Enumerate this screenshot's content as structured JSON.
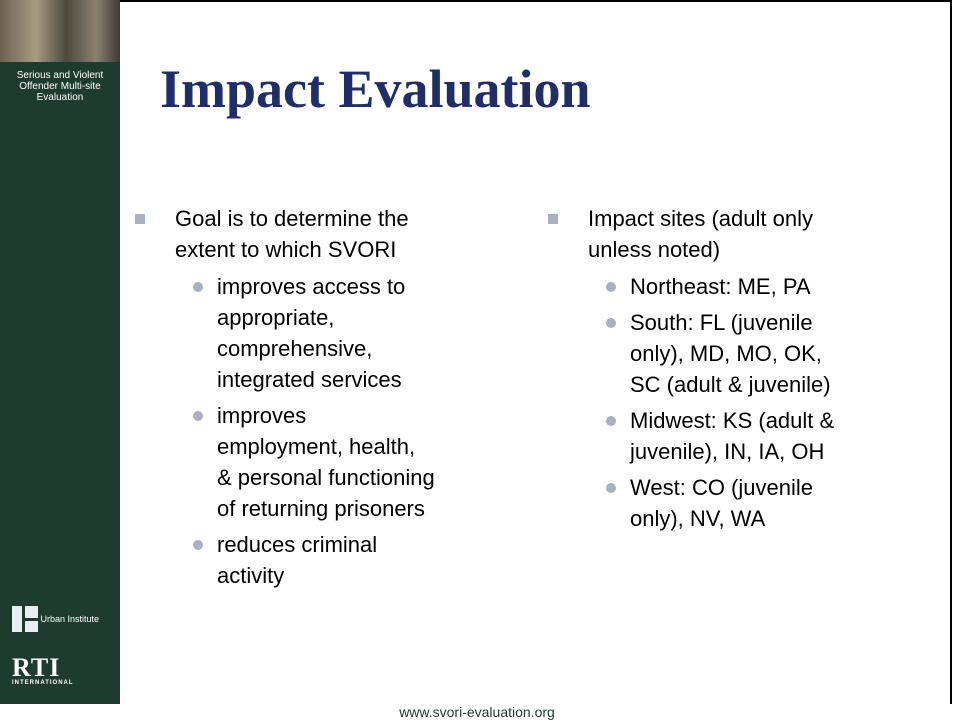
{
  "sidebar": {
    "caption": "Serious and Violent Offender Multi-site Evaluation",
    "logos": [
      {
        "label": "Urban Institute"
      },
      {
        "label": "RTI",
        "sublabel": "INTERNATIONAL"
      }
    ]
  },
  "title": "Impact Evaluation",
  "columns": [
    {
      "text": "Goal is to determine the extent to which SVORI",
      "items": [
        "improves access to appropriate, comprehensive, integrated services",
        "improves employment, health, & personal functioning of returning prisoners",
        "reduces criminal activity"
      ]
    },
    {
      "text": "Impact sites (adult only unless noted)",
      "items": [
        "Northeast: ME, PA",
        "South: FL (juvenile only), MD, MO, OK, SC (adult & juvenile)",
        "Midwest: KS (adult & juvenile), IN, IA, OH",
        "West: CO (juvenile only), NV, WA"
      ]
    }
  ],
  "footer": "www.svori-evaluation.org"
}
